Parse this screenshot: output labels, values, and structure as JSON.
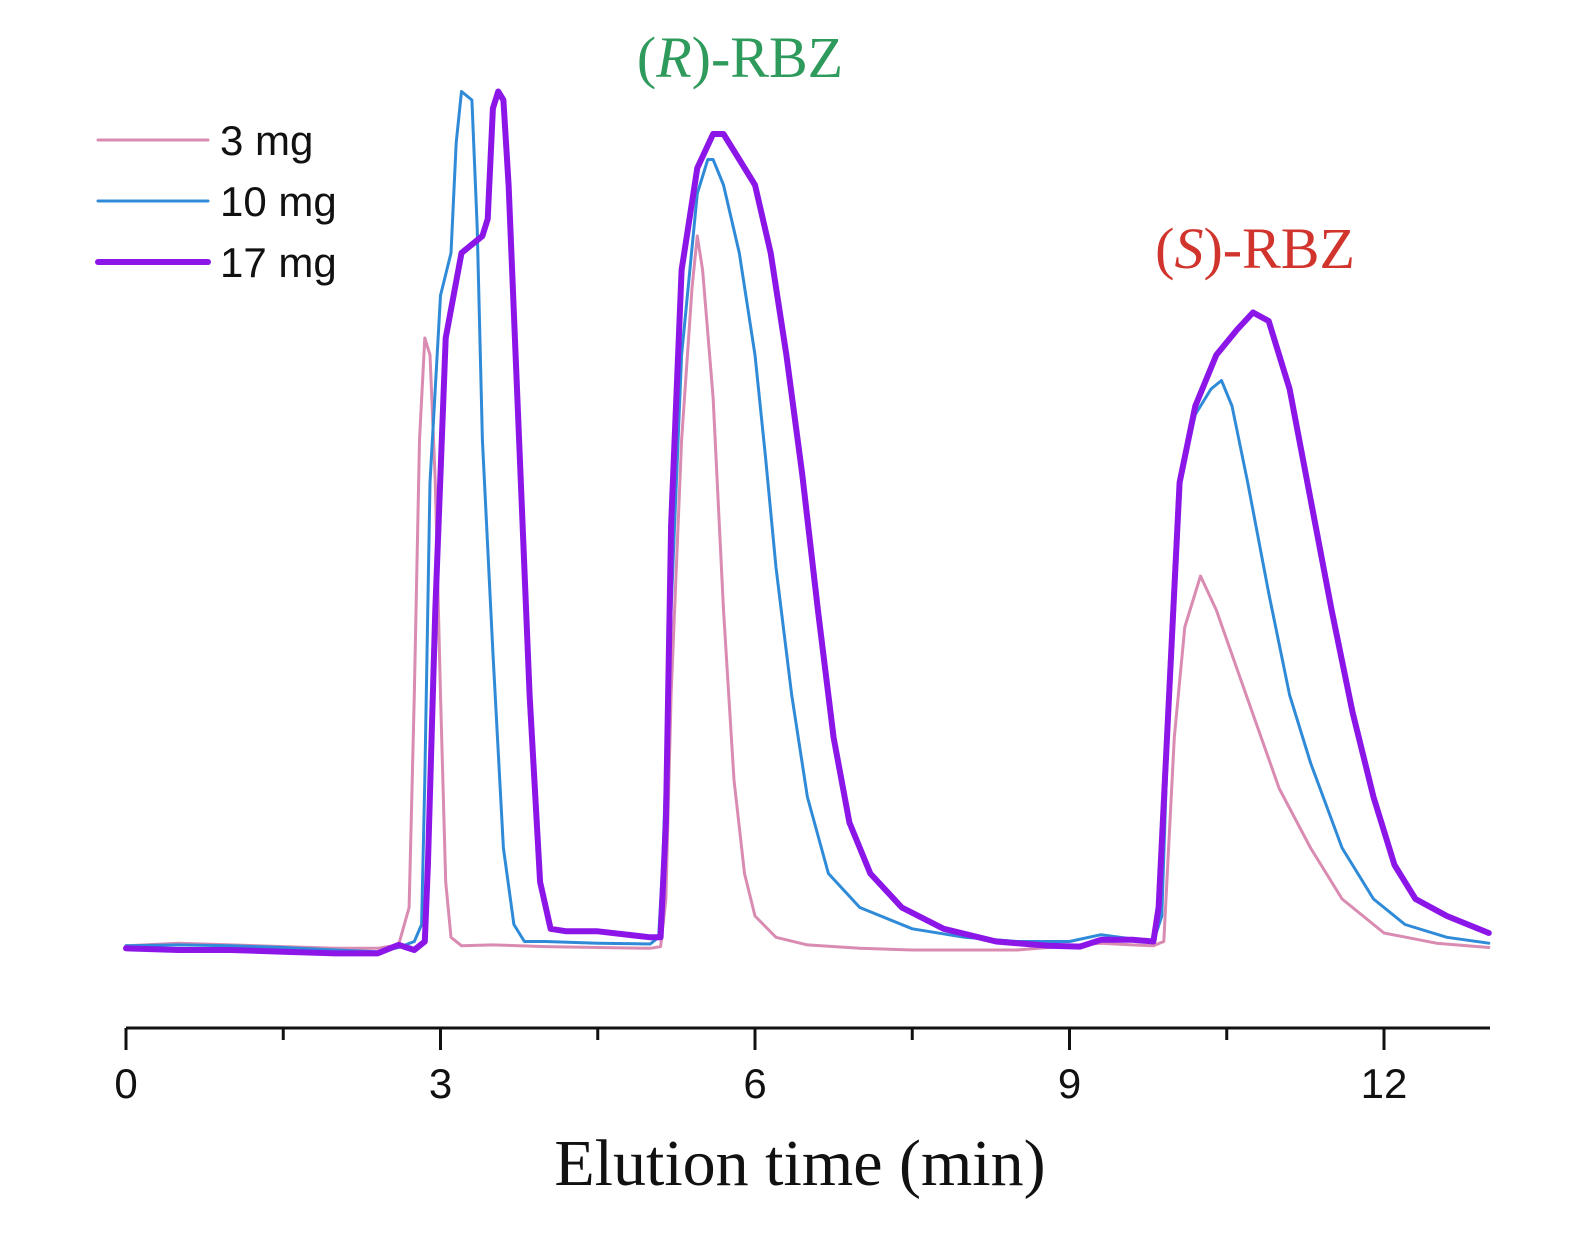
{
  "chart_data": {
    "type": "line",
    "title": "",
    "xlabel": "Elution time (min)",
    "ylabel": "",
    "xlim": [
      0,
      13
    ],
    "ylim": [
      0,
      100
    ],
    "x_ticks": [
      0,
      3,
      6,
      9,
      12
    ],
    "x_tick_labels": [
      "0",
      "3",
      "6",
      "9",
      "12"
    ],
    "legend_position": "top-left",
    "annotations": [
      {
        "name": "r-rbz",
        "prefix": "(",
        "italic": "R",
        "suffix": ")-RBZ",
        "color": "#2e9a5c"
      },
      {
        "name": "s-rbz",
        "prefix": "(",
        "italic": "S",
        "suffix": ")-RBZ",
        "color": "#d0342c"
      }
    ],
    "series": [
      {
        "name": "3 mg",
        "color": "#d98bb2",
        "width": 3,
        "points": [
          [
            0,
            0.5
          ],
          [
            0.5,
            0.8
          ],
          [
            1,
            0.6
          ],
          [
            1.5,
            0.4
          ],
          [
            2,
            0.2
          ],
          [
            2.4,
            0.2
          ],
          [
            2.6,
            0.6
          ],
          [
            2.7,
            5
          ],
          [
            2.75,
            30
          ],
          [
            2.8,
            60
          ],
          [
            2.85,
            72
          ],
          [
            2.9,
            70
          ],
          [
            2.95,
            55
          ],
          [
            3.0,
            30
          ],
          [
            3.05,
            8
          ],
          [
            3.1,
            1.5
          ],
          [
            3.2,
            0.5
          ],
          [
            3.5,
            0.6
          ],
          [
            4,
            0.4
          ],
          [
            4.5,
            0.3
          ],
          [
            5,
            0.2
          ],
          [
            5.1,
            0.4
          ],
          [
            5.15,
            6
          ],
          [
            5.2,
            30
          ],
          [
            5.3,
            60
          ],
          [
            5.4,
            78
          ],
          [
            5.45,
            84
          ],
          [
            5.5,
            80
          ],
          [
            5.6,
            65
          ],
          [
            5.7,
            40
          ],
          [
            5.8,
            20
          ],
          [
            5.9,
            9
          ],
          [
            6.0,
            4
          ],
          [
            6.2,
            1.5
          ],
          [
            6.5,
            0.6
          ],
          [
            7,
            0.2
          ],
          [
            7.5,
            0
          ],
          [
            8,
            0
          ],
          [
            8.5,
            0
          ],
          [
            9,
            0.5
          ],
          [
            9.3,
            0.8
          ],
          [
            9.6,
            0.6
          ],
          [
            9.8,
            0.5
          ],
          [
            9.9,
            1
          ],
          [
            10.0,
            25
          ],
          [
            10.1,
            38
          ],
          [
            10.25,
            44
          ],
          [
            10.4,
            40
          ],
          [
            10.6,
            33
          ],
          [
            10.8,
            26
          ],
          [
            11,
            19
          ],
          [
            11.3,
            12
          ],
          [
            11.6,
            6
          ],
          [
            12,
            2
          ],
          [
            12.5,
            0.8
          ],
          [
            13,
            0.3
          ]
        ]
      },
      {
        "name": "10 mg",
        "color": "#2f8bd8",
        "width": 3,
        "points": [
          [
            0,
            0.5
          ],
          [
            0.5,
            0.6
          ],
          [
            1,
            0.5
          ],
          [
            1.5,
            0.3
          ],
          [
            2,
            0
          ],
          [
            2.4,
            -0.2
          ],
          [
            2.6,
            0.3
          ],
          [
            2.75,
            1
          ],
          [
            2.82,
            3
          ],
          [
            2.85,
            20
          ],
          [
            2.9,
            55
          ],
          [
            3.0,
            77
          ],
          [
            3.1,
            82
          ],
          [
            3.15,
            95
          ],
          [
            3.2,
            101
          ],
          [
            3.3,
            100
          ],
          [
            3.35,
            85
          ],
          [
            3.4,
            60
          ],
          [
            3.5,
            35
          ],
          [
            3.6,
            12
          ],
          [
            3.7,
            3
          ],
          [
            3.8,
            1
          ],
          [
            4,
            1
          ],
          [
            4.5,
            0.8
          ],
          [
            5,
            0.7
          ],
          [
            5.08,
            1.5
          ],
          [
            5.12,
            10
          ],
          [
            5.2,
            40
          ],
          [
            5.3,
            70
          ],
          [
            5.45,
            89
          ],
          [
            5.55,
            93
          ],
          [
            5.6,
            93
          ],
          [
            5.7,
            90
          ],
          [
            5.85,
            82
          ],
          [
            6.0,
            70
          ],
          [
            6.1,
            58
          ],
          [
            6.2,
            45
          ],
          [
            6.35,
            30
          ],
          [
            6.5,
            18
          ],
          [
            6.7,
            9
          ],
          [
            7,
            5
          ],
          [
            7.5,
            2.5
          ],
          [
            8,
            1.5
          ],
          [
            8.5,
            1
          ],
          [
            9,
            1
          ],
          [
            9.3,
            1.8
          ],
          [
            9.6,
            1.3
          ],
          [
            9.8,
            1
          ],
          [
            9.88,
            4
          ],
          [
            9.95,
            30
          ],
          [
            10.05,
            55
          ],
          [
            10.2,
            63
          ],
          [
            10.35,
            66
          ],
          [
            10.45,
            67
          ],
          [
            10.55,
            64
          ],
          [
            10.7,
            55
          ],
          [
            10.9,
            42
          ],
          [
            11.1,
            30
          ],
          [
            11.3,
            22
          ],
          [
            11.6,
            12
          ],
          [
            11.9,
            6
          ],
          [
            12.2,
            3
          ],
          [
            12.6,
            1.5
          ],
          [
            13,
            0.8
          ]
        ]
      },
      {
        "name": "17 mg",
        "color": "#8c16e8",
        "width": 6,
        "points": [
          [
            0,
            0.2
          ],
          [
            0.5,
            0
          ],
          [
            1,
            0
          ],
          [
            1.5,
            -0.2
          ],
          [
            2,
            -0.4
          ],
          [
            2.4,
            -0.4
          ],
          [
            2.6,
            0.6
          ],
          [
            2.75,
            0
          ],
          [
            2.85,
            1
          ],
          [
            2.88,
            10
          ],
          [
            2.95,
            40
          ],
          [
            3.05,
            72
          ],
          [
            3.2,
            82
          ],
          [
            3.3,
            83
          ],
          [
            3.4,
            84
          ],
          [
            3.45,
            86
          ],
          [
            3.5,
            99
          ],
          [
            3.55,
            101
          ],
          [
            3.6,
            100
          ],
          [
            3.65,
            90
          ],
          [
            3.75,
            60
          ],
          [
            3.85,
            30
          ],
          [
            3.95,
            8
          ],
          [
            4.05,
            2.5
          ],
          [
            4.2,
            2.2
          ],
          [
            4.5,
            2.2
          ],
          [
            5,
            1.5
          ],
          [
            5.1,
            1.5
          ],
          [
            5.15,
            15
          ],
          [
            5.2,
            50
          ],
          [
            5.3,
            80
          ],
          [
            5.45,
            92
          ],
          [
            5.6,
            96
          ],
          [
            5.7,
            96
          ],
          [
            5.85,
            93
          ],
          [
            6.0,
            90
          ],
          [
            6.15,
            82
          ],
          [
            6.3,
            70
          ],
          [
            6.45,
            56
          ],
          [
            6.6,
            40
          ],
          [
            6.75,
            25
          ],
          [
            6.9,
            15
          ],
          [
            7.1,
            9
          ],
          [
            7.4,
            5
          ],
          [
            7.8,
            2.5
          ],
          [
            8.3,
            1
          ],
          [
            8.8,
            0.5
          ],
          [
            9.1,
            0.4
          ],
          [
            9.3,
            1.2
          ],
          [
            9.6,
            1.2
          ],
          [
            9.8,
            1
          ],
          [
            9.85,
            5
          ],
          [
            9.95,
            30
          ],
          [
            10.05,
            55
          ],
          [
            10.2,
            64
          ],
          [
            10.4,
            70
          ],
          [
            10.6,
            73
          ],
          [
            10.75,
            75
          ],
          [
            10.9,
            74
          ],
          [
            11.1,
            66
          ],
          [
            11.3,
            53
          ],
          [
            11.5,
            40
          ],
          [
            11.7,
            28
          ],
          [
            11.9,
            18
          ],
          [
            12.1,
            10
          ],
          [
            12.3,
            6
          ],
          [
            12.6,
            4
          ],
          [
            13,
            2
          ]
        ]
      }
    ]
  }
}
